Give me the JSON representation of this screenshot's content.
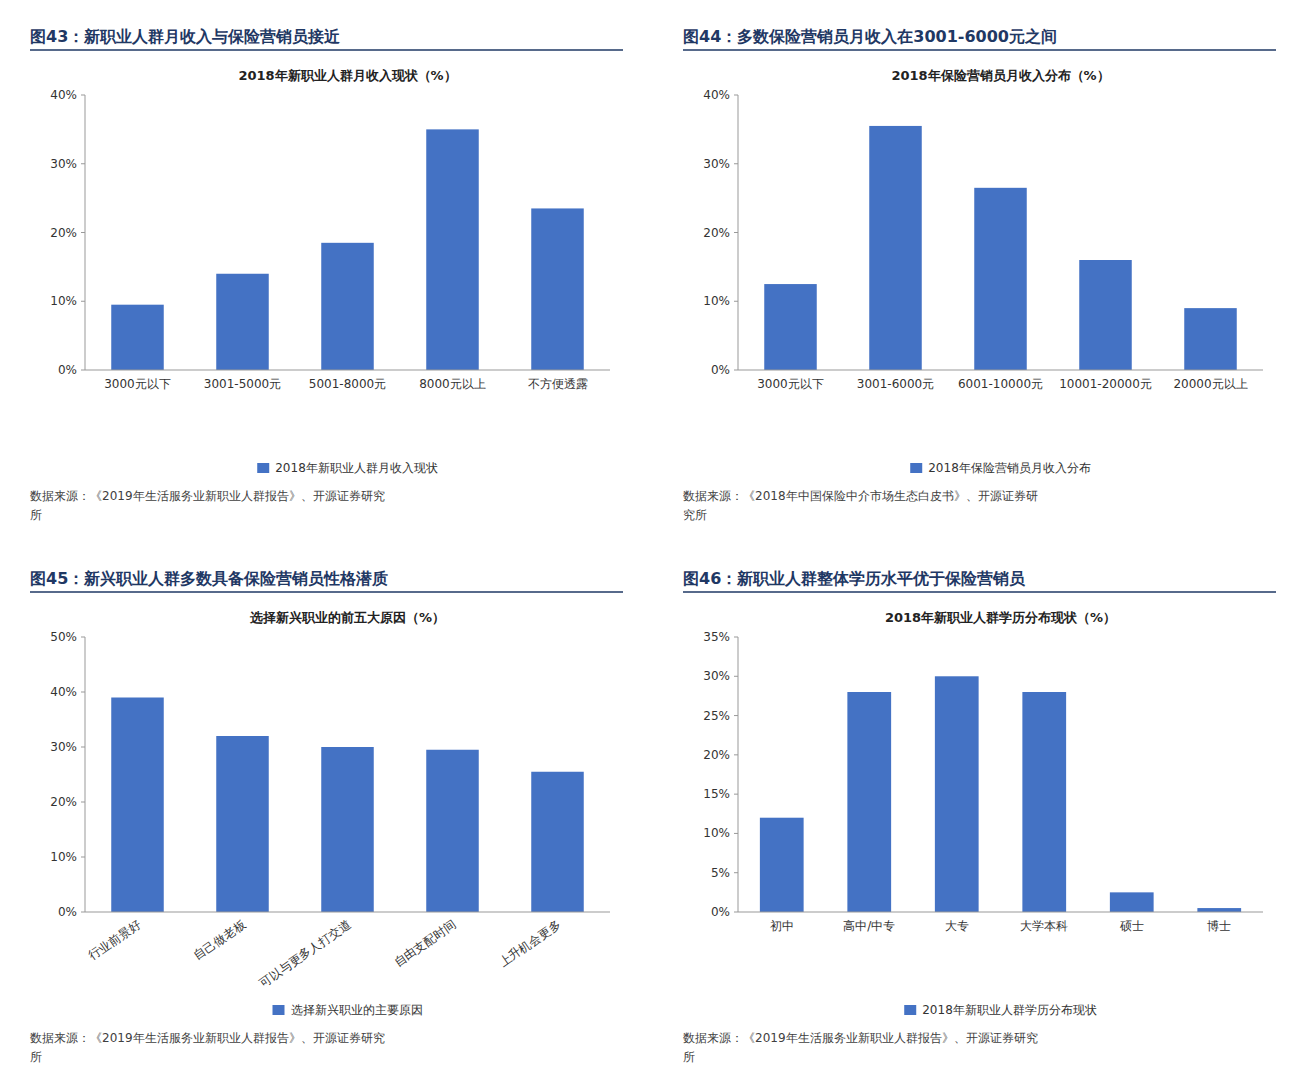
{
  "chart_data": [
    {
      "type": "bar",
      "subtitle": "图43：新职业人群月收入与保险营销员接近",
      "title": "2018年新职业人群月收入现状（%）",
      "categories": [
        "3000元以下",
        "3001-5000元",
        "5001-8000元",
        "8000元以上",
        "不方便透露"
      ],
      "series": [
        {
          "name": "2018年新职业人群月收入现状",
          "color": "#4472C4",
          "values": [
            9.5,
            14.0,
            18.5,
            35.0,
            23.5
          ]
        }
      ],
      "ylim": [
        0,
        40
      ],
      "yticks": [
        {
          "value": 0,
          "label": "0%"
        },
        {
          "value": 10,
          "label": "10%"
        },
        {
          "value": 20,
          "label": "20%"
        },
        {
          "value": 30,
          "label": "30%"
        },
        {
          "value": 40,
          "label": "40%"
        }
      ],
      "grid": false,
      "legend": "bottom",
      "annotations": [
        "数据来源：《2019年生活服务业新职业人群报告》、开源证券研究",
        "所"
      ]
    },
    {
      "type": "bar",
      "subtitle": "图44：多数保险营销员月收入在3001-6000元之间",
      "title": "2018年保险营销员月收入分布（%）",
      "categories": [
        "3000元以下",
        "3001-6000元",
        "6001-10000元",
        "10001-20000元",
        "20000元以上"
      ],
      "series": [
        {
          "name": "2018年保险营销员月收入分布",
          "color": "#4472C4",
          "values": [
            12.5,
            35.5,
            26.5,
            16.0,
            9.0
          ]
        }
      ],
      "ylim": [
        0,
        40
      ],
      "yticks": [
        {
          "value": 0,
          "label": "0%"
        },
        {
          "value": 10,
          "label": "10%"
        },
        {
          "value": 20,
          "label": "20%"
        },
        {
          "value": 30,
          "label": "30%"
        },
        {
          "value": 40,
          "label": "40%"
        }
      ],
      "grid": false,
      "legend": "bottom",
      "annotations": [
        "数据来源：《2018年中国保险中介市场生态白皮书》、开源证券研",
        "究所"
      ]
    },
    {
      "type": "bar",
      "subtitle": "图45：新兴职业人群多数具备保险营销员性格潜质",
      "title": "选择新兴职业的前五大原因（%）",
      "categories": [
        "行业前景好",
        "自己做老板",
        "可以与更多人打交道",
        "自由支配时间",
        "上升机会更多"
      ],
      "series": [
        {
          "name": "选择新兴职业的主要原因",
          "color": "#4472C4",
          "values": [
            39.0,
            32.0,
            30.0,
            29.5,
            25.5
          ]
        }
      ],
      "ylim": [
        0,
        50
      ],
      "yticks": [
        {
          "value": 0,
          "label": "0%"
        },
        {
          "value": 10,
          "label": "10%"
        },
        {
          "value": 20,
          "label": "20%"
        },
        {
          "value": 30,
          "label": "30%"
        },
        {
          "value": 40,
          "label": "40%"
        },
        {
          "value": 50,
          "label": "50%"
        }
      ],
      "grid": false,
      "legend": "bottom",
      "annotations": [
        "数据来源：《2019年生活服务业新职业人群报告》、开源证券研究",
        "所"
      ]
    },
    {
      "type": "bar",
      "subtitle": "图46：新职业人群整体学历水平优于保险营销员",
      "title": "2018年新职业人群学历分布现状（%）",
      "categories": [
        "初中",
        "高中/中专",
        "大专",
        "大学本科",
        "硕士",
        "博士"
      ],
      "series": [
        {
          "name": "2018年新职业人群学历分布现状",
          "color": "#4472C4",
          "values": [
            12.0,
            28.0,
            30.0,
            28.0,
            2.5,
            0.5
          ]
        }
      ],
      "ylim": [
        0,
        35
      ],
      "yticks": [
        {
          "value": 0,
          "label": "0%"
        },
        {
          "value": 5,
          "label": "5%"
        },
        {
          "value": 10,
          "label": "10%"
        },
        {
          "value": 15,
          "label": "15%"
        },
        {
          "value": 20,
          "label": "20%"
        },
        {
          "value": 25,
          "label": "25%"
        },
        {
          "value": 30,
          "label": "30%"
        },
        {
          "value": 35,
          "label": "35%"
        }
      ],
      "grid": false,
      "legend": "bottom",
      "annotations": [
        "数据来源：《2019年生活服务业新职业人群报告》、开源证券研究",
        "所"
      ]
    }
  ]
}
